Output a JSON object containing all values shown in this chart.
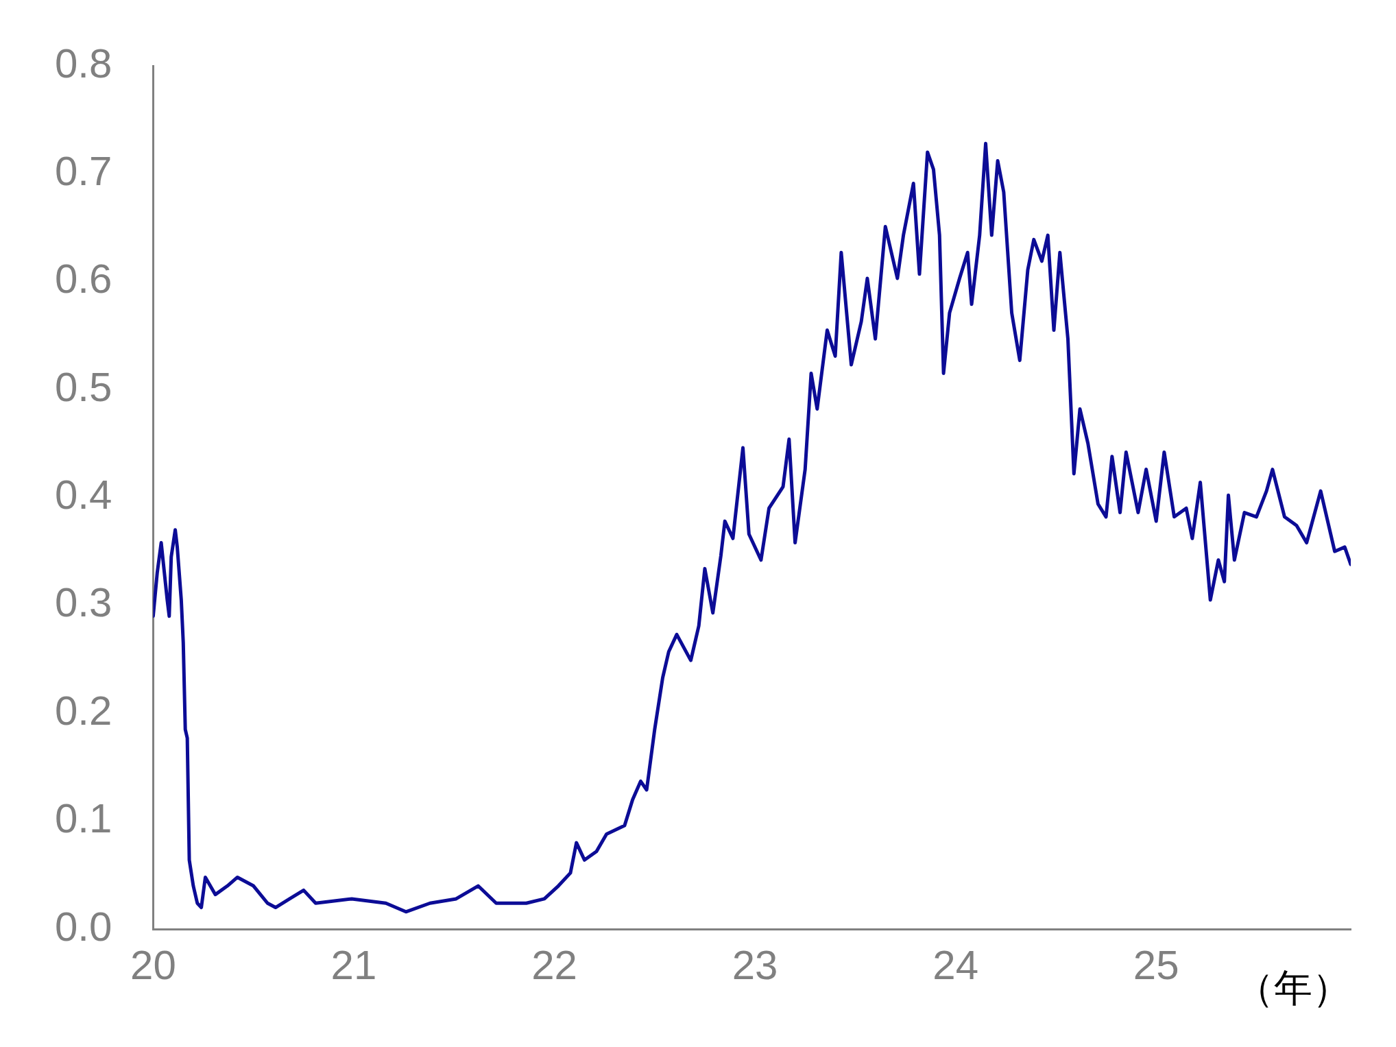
{
  "chart_data": {
    "type": "line",
    "xlabel": "（年）",
    "color": "#0c0c96",
    "xlim": [
      20,
      25.97
    ],
    "xticks": [
      20,
      21,
      22,
      23,
      24,
      25
    ],
    "ylim": [
      0,
      0.8
    ],
    "yticks": [
      {
        "value": 0,
        "label": "0.0"
      },
      0.1,
      0.2,
      0.3,
      0.4,
      0.5,
      0.6,
      0.7,
      0.8
    ],
    "grid": false,
    "legend": false,
    "marker": "none",
    "line_style": "solid",
    "x": [
      20.0,
      20.02,
      20.04,
      20.07,
      20.08,
      20.09,
      20.11,
      20.12,
      20.14,
      20.15,
      20.16,
      20.17,
      20.18,
      20.2,
      20.22,
      20.24,
      20.26,
      20.31,
      20.37,
      20.42,
      20.5,
      20.57,
      20.61,
      20.68,
      20.75,
      20.81,
      20.99,
      21.16,
      21.26,
      21.38,
      21.51,
      21.62,
      21.71,
      21.86,
      21.95,
      22.02,
      22.08,
      22.11,
      22.15,
      22.21,
      22.26,
      22.35,
      22.39,
      22.43,
      22.46,
      22.5,
      22.54,
      22.57,
      22.61,
      22.68,
      22.72,
      22.75,
      22.79,
      22.83,
      22.85,
      22.89,
      22.94,
      22.97,
      23.03,
      23.07,
      23.14,
      23.17,
      23.2,
      23.25,
      23.28,
      23.31,
      23.36,
      23.4,
      23.43,
      23.48,
      23.53,
      23.56,
      23.6,
      23.65,
      23.71,
      23.74,
      23.79,
      23.82,
      23.86,
      23.89,
      23.92,
      23.94,
      23.97,
      24.02,
      24.06,
      24.08,
      24.12,
      24.15,
      24.18,
      24.21,
      24.24,
      24.28,
      24.32,
      24.36,
      24.39,
      24.43,
      24.46,
      24.49,
      24.52,
      24.56,
      24.59,
      24.62,
      24.66,
      24.71,
      24.75,
      24.78,
      24.82,
      24.85,
      24.91,
      24.95,
      25.0,
      25.04,
      25.09,
      25.15,
      25.18,
      25.22,
      25.27,
      25.31,
      25.34,
      25.36,
      25.39,
      25.44,
      25.5,
      25.55,
      25.58,
      25.64,
      25.7,
      25.75,
      25.82,
      25.89,
      25.94,
      25.97
    ],
    "values": [
      0.29,
      0.33,
      0.358,
      0.305,
      0.29,
      0.345,
      0.37,
      0.354,
      0.305,
      0.265,
      0.185,
      0.177,
      0.064,
      0.04,
      0.024,
      0.02,
      0.048,
      0.032,
      0.04,
      0.048,
      0.04,
      0.024,
      0.02,
      0.028,
      0.036,
      0.024,
      0.028,
      0.024,
      0.016,
      0.024,
      0.028,
      0.04,
      0.024,
      0.024,
      0.028,
      0.04,
      0.052,
      0.08,
      0.064,
      0.072,
      0.088,
      0.096,
      0.12,
      0.137,
      0.129,
      0.185,
      0.233,
      0.257,
      0.273,
      0.249,
      0.281,
      0.334,
      0.293,
      0.346,
      0.378,
      0.362,
      0.446,
      0.366,
      0.342,
      0.39,
      0.41,
      0.454,
      0.358,
      0.426,
      0.515,
      0.482,
      0.555,
      0.531,
      0.627,
      0.523,
      0.563,
      0.603,
      0.547,
      0.651,
      0.603,
      0.643,
      0.691,
      0.607,
      0.72,
      0.704,
      0.643,
      0.515,
      0.571,
      0.603,
      0.627,
      0.579,
      0.643,
      0.728,
      0.643,
      0.712,
      0.683,
      0.571,
      0.527,
      0.611,
      0.639,
      0.619,
      0.643,
      0.555,
      0.627,
      0.547,
      0.422,
      0.482,
      0.45,
      0.394,
      0.382,
      0.438,
      0.386,
      0.442,
      0.386,
      0.426,
      0.378,
      0.442,
      0.382,
      0.39,
      0.362,
      0.414,
      0.305,
      0.342,
      0.322,
      0.402,
      0.342,
      0.386,
      0.382,
      0.406,
      0.426,
      0.382,
      0.374,
      0.358,
      0.406,
      0.35,
      0.354,
      0.338
    ]
  }
}
